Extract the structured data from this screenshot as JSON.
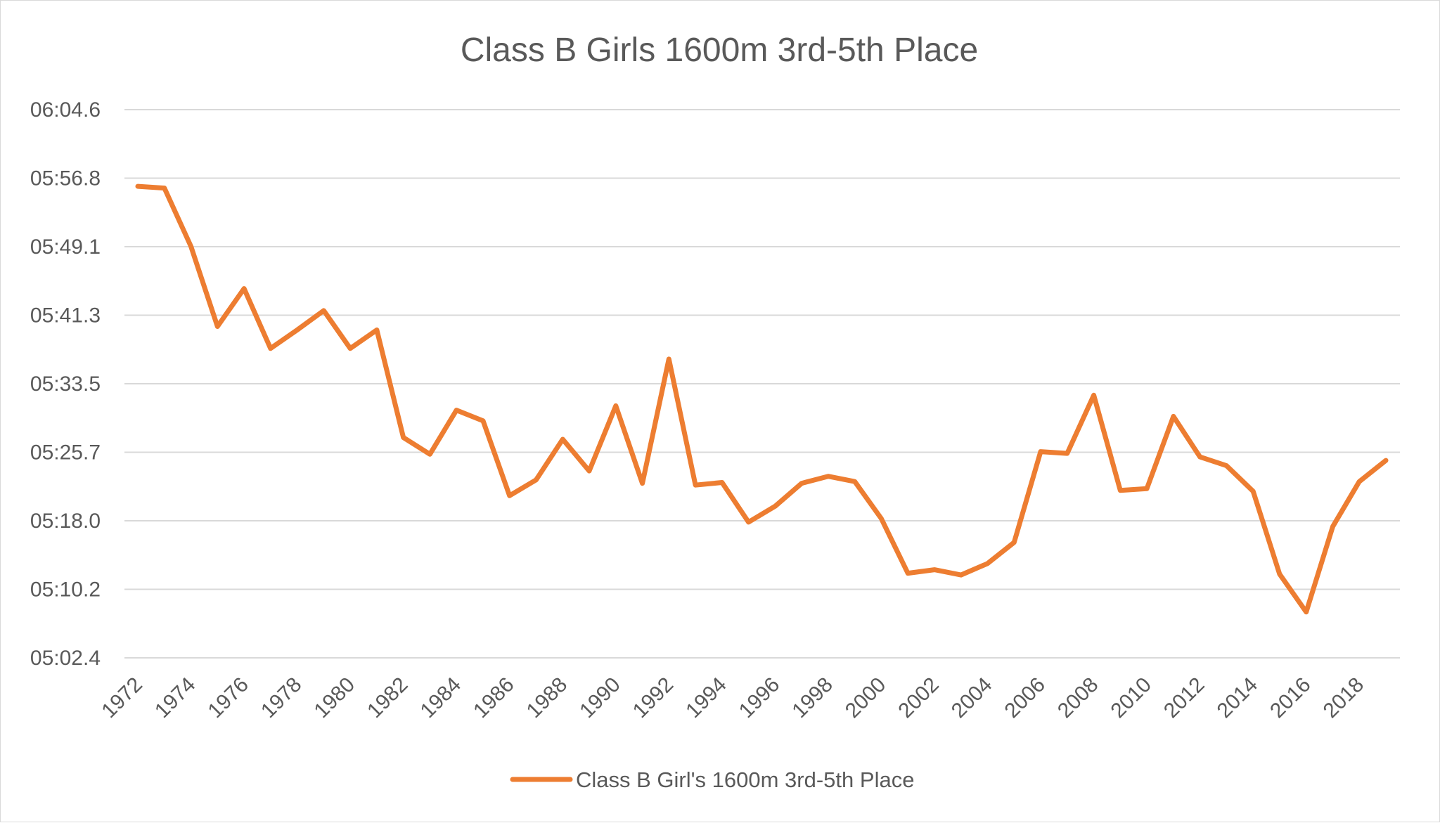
{
  "chart_data": {
    "type": "line",
    "title": "Class B Girls 1600m 3rd-5th Place",
    "xlabel": "",
    "ylabel": "",
    "x": [
      1972,
      1973,
      1974,
      1975,
      1976,
      1977,
      1978,
      1979,
      1980,
      1981,
      1982,
      1983,
      1984,
      1985,
      1986,
      1987,
      1988,
      1989,
      1990,
      1991,
      1992,
      1993,
      1994,
      1995,
      1996,
      1997,
      1998,
      1999,
      2000,
      2001,
      2002,
      2003,
      2004,
      2005,
      2006,
      2007,
      2008,
      2009,
      2010,
      2011,
      2012,
      2013,
      2014,
      2015,
      2016,
      2017,
      2018,
      2019
    ],
    "x_tick_labels": [
      "1972",
      "1974",
      "1976",
      "1978",
      "1980",
      "1982",
      "1984",
      "1986",
      "1988",
      "1990",
      "1992",
      "1994",
      "1996",
      "1998",
      "2000",
      "2002",
      "2004",
      "2006",
      "2008",
      "2010",
      "2012",
      "2014",
      "2016",
      "2018"
    ],
    "y_tick_labels": [
      "06:04.6",
      "05:56.8",
      "05:49.1",
      "05:41.3",
      "05:33.5",
      "05:25.7",
      "05:18.0",
      "05:10.2",
      "05:02.4"
    ],
    "y_unit": "seconds",
    "ylim": [
      302.4,
      364.6
    ],
    "grid": true,
    "legend_position": "bottom",
    "series": [
      {
        "name": "Class B Girl's 1600m 3rd-5th Place",
        "color": "#ed7d31",
        "values": [
          355.9,
          355.7,
          349.1,
          340.0,
          344.3,
          337.5,
          339.6,
          341.8,
          337.5,
          339.6,
          327.4,
          325.5,
          330.5,
          329.3,
          320.8,
          322.6,
          327.2,
          323.6,
          331.0,
          322.2,
          336.3,
          322.0,
          322.3,
          317.8,
          319.6,
          322.2,
          323.0,
          322.4,
          318.2,
          312.0,
          312.4,
          311.8,
          313.1,
          315.5,
          325.8,
          325.6,
          332.2,
          321.4,
          321.6,
          329.8,
          325.2,
          324.2,
          321.3,
          311.9,
          307.6,
          317.3,
          322.4,
          324.8
        ]
      }
    ]
  }
}
